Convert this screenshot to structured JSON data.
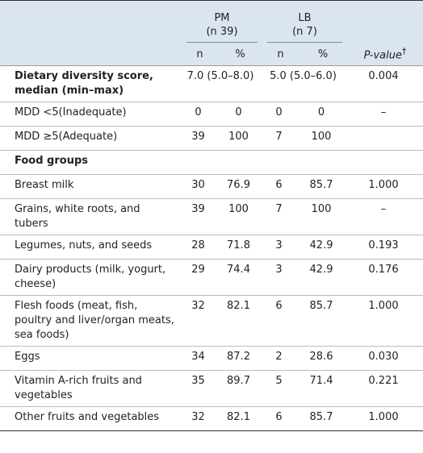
{
  "header": {
    "groups": [
      "PM",
      "LB"
    ],
    "group_subs": [
      "(n 39)",
      "(n 7)"
    ],
    "n": "n",
    "pct": "%",
    "pvalue": "P-value",
    "pvalue_mark": "†"
  },
  "rows": [
    {
      "label": "Dietary diversity score, median (min–max)",
      "bold": true,
      "cells": [
        "7.0 (5.0–8.0)",
        "5.0 (5.0–6.0)",
        "0.004"
      ]
    },
    {
      "label": "MDD <5(Inadequate)",
      "cells": [
        "0",
        "0",
        "0",
        "0",
        "–"
      ]
    },
    {
      "label": "MDD ≥5(Adequate)",
      "cells": [
        "39",
        "100",
        "7",
        "100",
        ""
      ]
    },
    {
      "label": "Food groups",
      "bold": true,
      "cells": []
    },
    {
      "label": "Breast milk",
      "cells": [
        "30",
        "76.9",
        "6",
        "85.7",
        "1.000"
      ]
    },
    {
      "label": "Grains, white roots, and tubers",
      "cells": [
        "39",
        "100",
        "7",
        "100",
        "–"
      ]
    },
    {
      "label": "Legumes, nuts, and seeds",
      "cells": [
        "28",
        "71.8",
        "3",
        "42.9",
        "0.193"
      ]
    },
    {
      "label": "Dairy products (milk, yogurt, cheese)",
      "cells": [
        "29",
        "74.4",
        "3",
        "42.9",
        "0.176"
      ]
    },
    {
      "label": "Flesh foods (meat, fish, poultry and liver/organ meats, sea foods)",
      "cells": [
        "32",
        "82.1",
        "6",
        "85.7",
        "1.000"
      ]
    },
    {
      "label": "Eggs",
      "cells": [
        "34",
        "87.2",
        "2",
        "28.6",
        "0.030"
      ]
    },
    {
      "label": "Vitamin A-rich fruits and vegetables",
      "cells": [
        "35",
        "89.7",
        "5",
        "71.4",
        "0.221"
      ]
    },
    {
      "label": "Other fruits and vegetables",
      "cells": [
        "32",
        "82.1",
        "6",
        "85.7",
        "1.000"
      ]
    }
  ]
}
